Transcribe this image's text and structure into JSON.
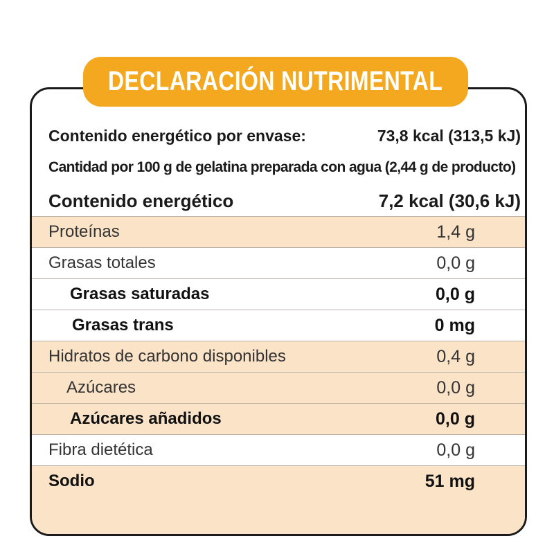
{
  "title": "DECLARACIÓN NUTRIMENTAL",
  "header": {
    "line1": {
      "label": "Contenido energético por envase:",
      "value": "73,8 kcal (313,5 kJ)"
    },
    "line2": {
      "label": "Cantidad por 100 g de gelatina preparada con agua (2,44 g de producto)"
    },
    "line3": {
      "label": "Contenido energético",
      "value": "7,2 kcal (30,6 kJ)"
    }
  },
  "rows": [
    {
      "label": "Proteínas",
      "value": "1,4 g"
    },
    {
      "label": "Grasas totales",
      "value": "0,0 g"
    },
    {
      "label": "Grasas saturadas",
      "value": "0,0 g"
    },
    {
      "label": "Grasas trans",
      "value": "0 mg"
    },
    {
      "label": "Hidratos de carbono disponibles",
      "value": "0,4 g"
    },
    {
      "label": "Azúcares",
      "value": "0,0 g"
    },
    {
      "label": "Azúcares añadidos",
      "value": "0,0 g"
    },
    {
      "label": "Fibra dietética",
      "value": "0,0 g"
    },
    {
      "label": "Sodio",
      "value": "51 mg"
    }
  ],
  "colors": {
    "accent": "#f4a81f",
    "shade": "#fbe3c8",
    "border": "#1a1a1a"
  }
}
